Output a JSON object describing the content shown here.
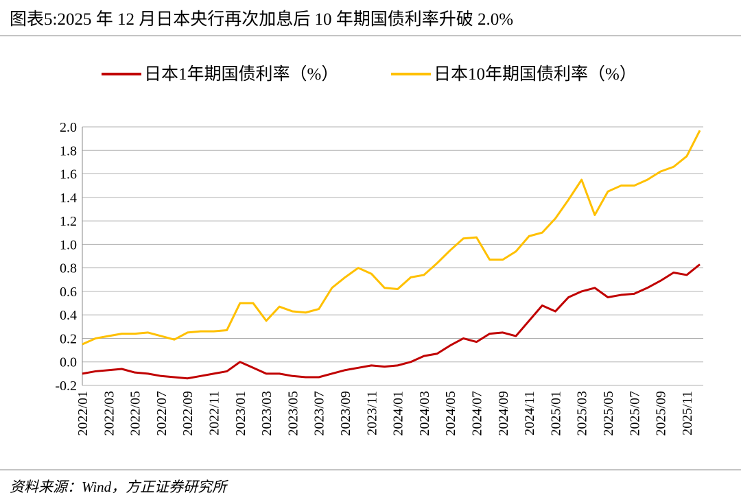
{
  "chart_data": {
    "type": "line",
    "title": "图表5:2025 年 12 月日本央行再次加息后 10 年期国债利率升破 2.0%",
    "source": "资料来源：Wind，方正证券研究所",
    "categories": [
      "2022/01",
      null,
      "2022/03",
      null,
      "2022/05",
      null,
      "2022/07",
      null,
      "2022/09",
      null,
      "2022/11",
      null,
      "2023/01",
      null,
      "2023/03",
      null,
      "2023/05",
      null,
      "2023/07",
      null,
      "2023/09",
      null,
      "2023/11",
      null,
      "2024/01",
      null,
      "2024/03",
      null,
      "2024/05",
      null,
      "2024/07",
      null,
      "2024/09",
      null,
      "2024/11",
      null,
      "2025/01",
      null,
      "2025/03",
      null,
      "2025/05",
      null,
      "2025/07",
      null,
      "2025/09",
      null,
      "2025/11",
      null
    ],
    "series": [
      {
        "name": "日本1年期国债利率（%）",
        "color": "#c00000",
        "values": [
          -0.1,
          -0.08,
          -0.07,
          -0.06,
          -0.09,
          -0.1,
          -0.12,
          -0.13,
          -0.14,
          -0.12,
          -0.1,
          -0.08,
          0.0,
          -0.05,
          -0.1,
          -0.1,
          -0.12,
          -0.13,
          -0.13,
          -0.1,
          -0.07,
          -0.05,
          -0.03,
          -0.04,
          -0.03,
          0.0,
          0.05,
          0.07,
          0.14,
          0.2,
          0.17,
          0.24,
          0.25,
          0.22,
          0.35,
          0.48,
          0.43,
          0.55,
          0.6,
          0.63,
          0.55,
          0.57,
          0.58,
          0.63,
          0.69,
          0.76,
          0.74,
          0.83
        ]
      },
      {
        "name": "日本10年期国债利率（%）",
        "color": "#ffc000",
        "values": [
          0.15,
          0.2,
          0.22,
          0.24,
          0.24,
          0.25,
          0.22,
          0.19,
          0.25,
          0.26,
          0.26,
          0.27,
          0.5,
          0.5,
          0.35,
          0.47,
          0.43,
          0.42,
          0.45,
          0.63,
          0.72,
          0.8,
          0.75,
          0.63,
          0.62,
          0.72,
          0.74,
          0.84,
          0.95,
          1.05,
          1.06,
          0.87,
          0.87,
          0.94,
          1.07,
          1.1,
          1.22,
          1.38,
          1.55,
          1.25,
          1.45,
          1.5,
          1.5,
          1.55,
          1.62,
          1.66,
          1.75,
          1.97
        ]
      }
    ],
    "ylim": [
      -0.2,
      2.0
    ],
    "yticks": [
      {
        "value": 2.0,
        "label": "2.0"
      },
      1.8,
      1.6,
      1.4,
      1.2,
      {
        "value": 1.0,
        "label": "1.0"
      },
      0.8,
      0.6,
      0.4,
      0.2,
      {
        "value": 0.0,
        "label": "0.0"
      },
      -0.2
    ],
    "grid": true
  }
}
